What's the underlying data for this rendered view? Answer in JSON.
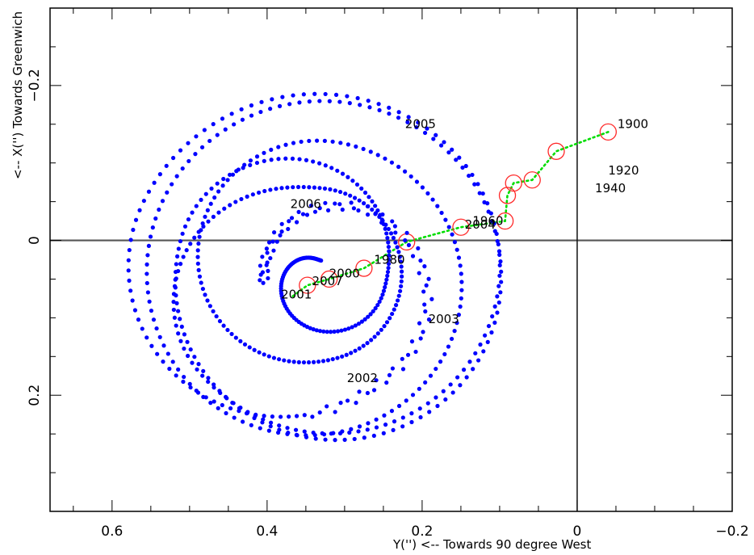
{
  "chart_data": {
    "type": "scatter",
    "title": "",
    "xlabel": "Y('') <-- Towards 90 degree West",
    "ylabel": "<-- X('') Towards Greenwich",
    "xlim": [
      0.68,
      -0.2
    ],
    "ylim": [
      -0.3,
      0.35
    ],
    "x_ticks": [
      0.6,
      0.4,
      0.2,
      0,
      -0.2
    ],
    "x_tick_labels": [
      "0.6",
      "0.4",
      "0.2",
      "0",
      "−0.2"
    ],
    "y_ticks": [
      -0.2,
      0,
      0.2
    ],
    "y_tick_labels": [
      "−0.2",
      "0",
      "0.2"
    ],
    "zero_lines": true,
    "colors": {
      "daily_pole": "#0000ff",
      "mean_pole_line": "#00dd00",
      "mean_pole_circle": "#ff2a2a",
      "axes": "#000000"
    },
    "series": [
      {
        "name": "",
        "style": "blue dots (daily pole position 2001-2007, spiral)",
        "spiral": {
          "start": [
            0.385,
            0.05
          ],
          "end": [
            0.345,
            0.05
          ],
          "center_start": [
            0.345,
            0.055
          ],
          "center_end": [
            0.335,
            0.04
          ],
          "radius_path": [
            [
              0,
              0.06
            ],
            [
              0.1,
              0.16
            ],
            [
              0.17,
              0.24
            ],
            [
              0.22,
              0.25
            ],
            [
              0.3,
              0.19
            ],
            [
              0.36,
              0.12
            ],
            [
              0.43,
              0.11
            ],
            [
              0.52,
              0.18
            ],
            [
              0.62,
              0.215
            ],
            [
              0.72,
              0.24
            ],
            [
              0.8,
              0.18
            ],
            [
              0.88,
              0.09
            ],
            [
              1.0,
              0.015
            ]
          ],
          "turns": 6.3,
          "start_angle_deg": 180,
          "n_points": 700
        }
      },
      {
        "name": "",
        "style": "green dotted line with red open circles (mean pole 1900-2005)",
        "points": [
          {
            "x": -0.04,
            "y": -0.14
          },
          {
            "x": 0.027,
            "y": -0.115
          },
          {
            "x": 0.058,
            "y": -0.078
          },
          {
            "x": 0.082,
            "y": -0.074
          },
          {
            "x": 0.09,
            "y": -0.058
          },
          {
            "x": 0.093,
            "y": -0.025
          },
          {
            "x": 0.15,
            "y": -0.017
          },
          {
            "x": 0.22,
            "y": 0.002
          },
          {
            "x": 0.275,
            "y": 0.036
          },
          {
            "x": 0.32,
            "y": 0.05
          },
          {
            "x": 0.348,
            "y": 0.058
          }
        ],
        "line_end": {
          "x": 0.368,
          "y": 0.073
        }
      }
    ],
    "annotations": [
      {
        "text": "1900",
        "x": -0.052,
        "y": -0.145
      },
      {
        "text": "1920",
        "x": -0.04,
        "y": -0.085
      },
      {
        "text": "1940",
        "x": -0.023,
        "y": -0.062
      },
      {
        "text": "1960",
        "x": 0.135,
        "y": -0.02
      },
      {
        "text": "1980",
        "x": 0.262,
        "y": 0.03
      },
      {
        "text": "2000",
        "x": 0.32,
        "y": 0.048
      },
      {
        "text": "2001",
        "x": 0.382,
        "y": 0.075
      },
      {
        "text": "2002",
        "x": 0.297,
        "y": 0.183
      },
      {
        "text": "2003",
        "x": 0.192,
        "y": 0.107
      },
      {
        "text": "2004",
        "x": 0.145,
        "y": -0.015
      },
      {
        "text": "2005",
        "x": 0.222,
        "y": -0.145
      },
      {
        "text": "2006",
        "x": 0.37,
        "y": -0.042
      },
      {
        "text": "2007",
        "x": 0.342,
        "y": 0.058
      }
    ]
  }
}
